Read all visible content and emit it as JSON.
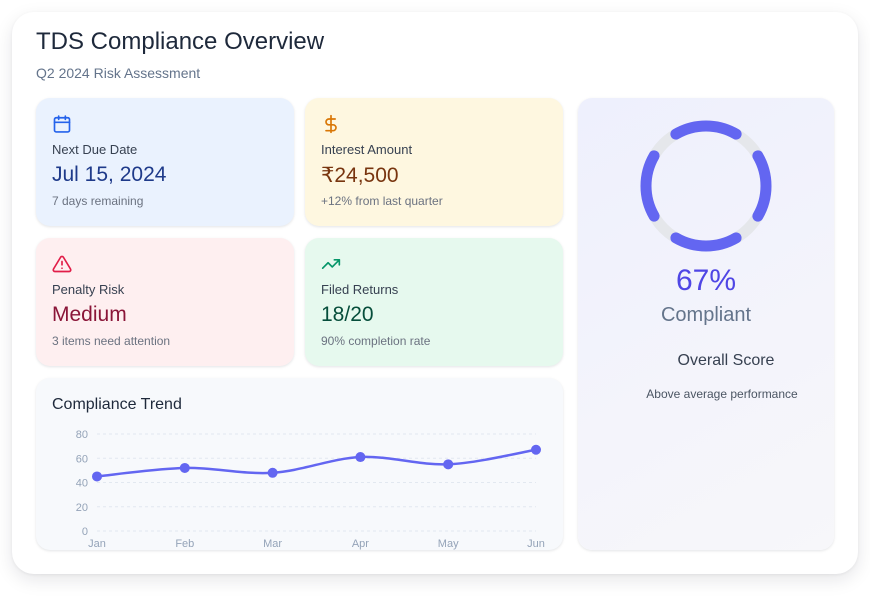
{
  "header": {
    "title": "TDS Compliance Overview",
    "subtitle": "Q2 2024 Risk Assessment"
  },
  "cards": {
    "due": {
      "icon": "calendar-icon",
      "label": "Next Due Date",
      "value": "Jul 15, 2024",
      "note": "7 days remaining",
      "color": "#2563eb"
    },
    "interest": {
      "icon": "dollar-icon",
      "label": "Interest Amount",
      "value": "₹24,500",
      "note": "+12% from last quarter",
      "color": "#d97706"
    },
    "penalty": {
      "icon": "warning-triangle-icon",
      "label": "Penalty Risk",
      "value": "Medium",
      "note": "3 items need attention",
      "color": "#e11d48"
    },
    "filed": {
      "icon": "trending-up-icon",
      "label": "Filed Returns",
      "value": "18/20",
      "note": "90% completion rate",
      "color": "#059669"
    }
  },
  "trend": {
    "title": "Compliance Trend",
    "line_color": "#6366f1"
  },
  "chart_data": {
    "type": "line",
    "categories": [
      "Jan",
      "Feb",
      "Mar",
      "Apr",
      "May",
      "Jun"
    ],
    "values": [
      45,
      52,
      48,
      61,
      55,
      67
    ],
    "y_ticks": [
      0,
      20,
      40,
      60,
      80
    ],
    "ylim": [
      0,
      80
    ],
    "grid": true
  },
  "score": {
    "percent": 67,
    "percent_text": "67%",
    "status": "Compliant",
    "title": "Overall Score",
    "note": "Above average performance",
    "ring_color": "#6366f1",
    "track_color": "#e5e7eb"
  }
}
